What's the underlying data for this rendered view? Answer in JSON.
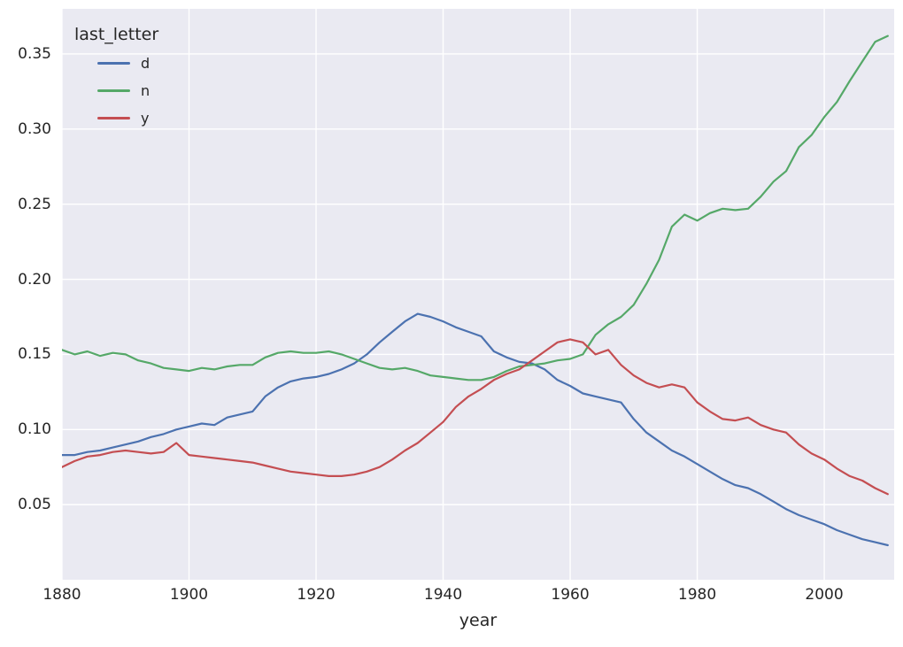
{
  "figure": {
    "background": "#ffffff",
    "plot_background": "#eaeaf2",
    "grid_color": "#ffffff",
    "text_color": "#262626"
  },
  "chart_data": {
    "type": "line",
    "title": "",
    "xlabel": "year",
    "ylabel": "",
    "grid": true,
    "xlim": [
      1880,
      2011
    ],
    "ylim": [
      0,
      0.38
    ],
    "xticks": [
      1880,
      1900,
      1920,
      1940,
      1960,
      1980,
      2000
    ],
    "yticks": [
      0.05,
      0.1,
      0.15,
      0.2,
      0.25,
      0.3,
      0.35
    ],
    "legend": {
      "title": "last_letter",
      "position": "upper left"
    },
    "x": [
      1880,
      1882,
      1884,
      1886,
      1888,
      1890,
      1892,
      1894,
      1896,
      1898,
      1900,
      1902,
      1904,
      1906,
      1908,
      1910,
      1912,
      1914,
      1916,
      1918,
      1920,
      1922,
      1924,
      1926,
      1928,
      1930,
      1932,
      1934,
      1936,
      1938,
      1940,
      1942,
      1944,
      1946,
      1948,
      1950,
      1952,
      1954,
      1956,
      1958,
      1960,
      1962,
      1964,
      1966,
      1968,
      1970,
      1972,
      1974,
      1976,
      1978,
      1980,
      1982,
      1984,
      1986,
      1988,
      1990,
      1992,
      1994,
      1996,
      1998,
      2000,
      2002,
      2004,
      2006,
      2008,
      2010
    ],
    "series": [
      {
        "name": "d",
        "color": "#4c72b0",
        "values": [
          0.083,
          0.083,
          0.085,
          0.086,
          0.088,
          0.09,
          0.092,
          0.095,
          0.097,
          0.1,
          0.102,
          0.104,
          0.103,
          0.108,
          0.11,
          0.112,
          0.122,
          0.128,
          0.132,
          0.134,
          0.135,
          0.137,
          0.14,
          0.144,
          0.15,
          0.158,
          0.165,
          0.172,
          0.177,
          0.175,
          0.172,
          0.168,
          0.165,
          0.162,
          0.152,
          0.148,
          0.145,
          0.144,
          0.14,
          0.133,
          0.129,
          0.124,
          0.122,
          0.12,
          0.118,
          0.107,
          0.098,
          0.092,
          0.086,
          0.082,
          0.077,
          0.072,
          0.067,
          0.063,
          0.061,
          0.057,
          0.052,
          0.047,
          0.043,
          0.04,
          0.037,
          0.033,
          0.03,
          0.027,
          0.025,
          0.023
        ]
      },
      {
        "name": "n",
        "color": "#55a868",
        "values": [
          0.153,
          0.15,
          0.152,
          0.149,
          0.151,
          0.15,
          0.146,
          0.144,
          0.141,
          0.14,
          0.139,
          0.141,
          0.14,
          0.142,
          0.143,
          0.143,
          0.148,
          0.151,
          0.152,
          0.151,
          0.151,
          0.152,
          0.15,
          0.147,
          0.144,
          0.141,
          0.14,
          0.141,
          0.139,
          0.136,
          0.135,
          0.134,
          0.133,
          0.133,
          0.135,
          0.139,
          0.142,
          0.143,
          0.144,
          0.146,
          0.147,
          0.15,
          0.163,
          0.17,
          0.175,
          0.183,
          0.197,
          0.213,
          0.235,
          0.243,
          0.239,
          0.244,
          0.247,
          0.246,
          0.247,
          0.255,
          0.265,
          0.272,
          0.288,
          0.296,
          0.308,
          0.318,
          0.332,
          0.345,
          0.358,
          0.362
        ]
      },
      {
        "name": "y",
        "color": "#c44e52",
        "values": [
          0.075,
          0.079,
          0.082,
          0.083,
          0.085,
          0.086,
          0.085,
          0.084,
          0.085,
          0.091,
          0.083,
          0.082,
          0.081,
          0.08,
          0.079,
          0.078,
          0.076,
          0.074,
          0.072,
          0.071,
          0.07,
          0.069,
          0.069,
          0.07,
          0.072,
          0.075,
          0.08,
          0.086,
          0.091,
          0.098,
          0.105,
          0.115,
          0.122,
          0.127,
          0.133,
          0.137,
          0.14,
          0.146,
          0.152,
          0.158,
          0.16,
          0.158,
          0.15,
          0.153,
          0.143,
          0.136,
          0.131,
          0.128,
          0.13,
          0.128,
          0.118,
          0.112,
          0.107,
          0.106,
          0.108,
          0.103,
          0.1,
          0.098,
          0.09,
          0.084,
          0.08,
          0.074,
          0.069,
          0.066,
          0.061,
          0.057
        ]
      }
    ]
  }
}
